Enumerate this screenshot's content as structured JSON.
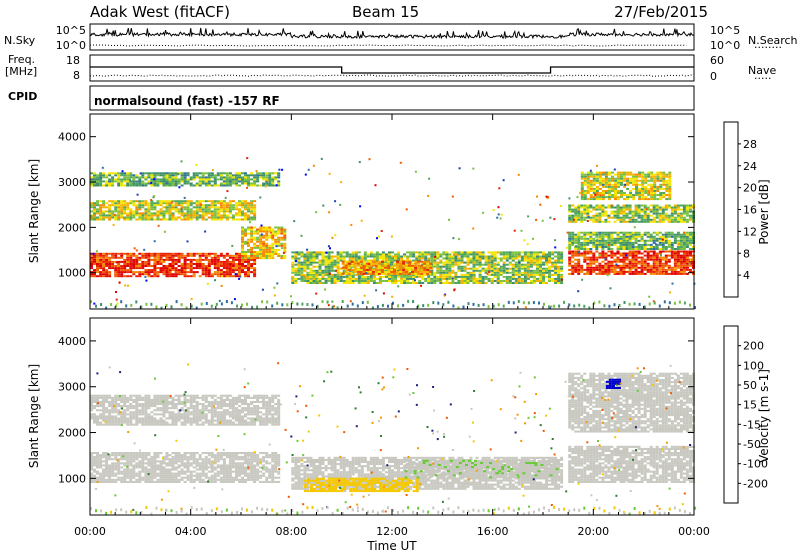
{
  "header": {
    "station": "Adak West (fitACF)",
    "beam": "Beam 15",
    "date": "27/Feb/2015"
  },
  "panels": {
    "nsky": {
      "left_label": "N.Sky",
      "right_label": "N.Search",
      "right_line": "········",
      "left_ticks": [
        "10^5",
        "10^0"
      ],
      "right_ticks": [
        "10^5",
        "10^0"
      ]
    },
    "freq": {
      "left_label_1": "Freq.",
      "left_label_2": "[MHz]",
      "cpid_label": "CPID",
      "right_label": "Nave",
      "right_line": "·····",
      "left_ticks": [
        "18",
        "8"
      ],
      "right_ticks": [
        "60",
        "0"
      ]
    },
    "cpid_text": "normalsound (fast) -157 RF"
  },
  "colors": {
    "power_scale": [
      "#0000ff",
      "#1e3cb4",
      "#2f6ea3",
      "#3e8e6b",
      "#4fa65a",
      "#7cc040",
      "#f2e500",
      "#f5b300",
      "#f68a00",
      "#f05a00",
      "#e82000",
      "#e00000"
    ],
    "velocity_scale": [
      "#e00000",
      "#f05a00",
      "#f59a00",
      "#f5c800",
      "#c8c8c0",
      "#c8c8c0",
      "#66cc33",
      "#2e7d32",
      "#1a237e",
      "#0000cc"
    ]
  },
  "chart_data": [
    {
      "type": "heatmap",
      "title": "Power",
      "ylabel": "Slant Range [km]",
      "xlabel": "Time UT",
      "xlim": [
        "00:00",
        "00:00"
      ],
      "ylim": [
        200,
        4500
      ],
      "x_ticks": [
        "00:00",
        "04:00",
        "08:00",
        "12:00",
        "16:00",
        "20:00",
        "00:00"
      ],
      "y_ticks": [
        1000,
        2000,
        3000,
        4000
      ],
      "colorbar_label": "Power [dB]",
      "colorbar_ticks": [
        4,
        8,
        12,
        16,
        20,
        24,
        28
      ],
      "regions": [
        {
          "t0": 0.0,
          "t1": 6.5,
          "r0": 900,
          "r1": 1400,
          "level": 26
        },
        {
          "t0": 6.0,
          "t1": 7.8,
          "r0": 1300,
          "r1": 2000,
          "level": 18
        },
        {
          "t0": 0.0,
          "t1": 6.5,
          "r0": 2150,
          "r1": 2600,
          "level": 16
        },
        {
          "t0": 0.0,
          "t1": 7.5,
          "r0": 2900,
          "r1": 3200,
          "level": 12
        },
        {
          "t0": 8.0,
          "t1": 18.7,
          "r0": 750,
          "r1": 1450,
          "level": 14
        },
        {
          "t0": 10.0,
          "t1": 13.5,
          "r0": 950,
          "r1": 1250,
          "level": 21
        },
        {
          "t0": 19.0,
          "t1": 24.0,
          "r0": 950,
          "r1": 1450,
          "level": 26
        },
        {
          "t0": 19.0,
          "t1": 24.0,
          "r0": 1500,
          "r1": 1900,
          "level": 12
        },
        {
          "t0": 19.0,
          "t1": 24.0,
          "r0": 2100,
          "r1": 2500,
          "level": 14
        },
        {
          "t0": 19.5,
          "t1": 23.0,
          "r0": 2600,
          "r1": 3200,
          "level": 16
        }
      ]
    },
    {
      "type": "heatmap",
      "title": "Velocity",
      "ylabel": "Slant Range [km]",
      "xlabel": "Time UT",
      "xlim": [
        "00:00",
        "00:00"
      ],
      "ylim": [
        200,
        4500
      ],
      "x_ticks": [
        "00:00",
        "04:00",
        "08:00",
        "12:00",
        "16:00",
        "20:00",
        "00:00"
      ],
      "y_ticks": [
        1000,
        2000,
        3000,
        4000
      ],
      "colorbar_label": "Velocity [m s-1]",
      "colorbar_ticks": [
        -200,
        -100,
        -50,
        -15,
        15,
        50,
        100,
        200
      ],
      "regions": [
        {
          "t0": 0.0,
          "t1": 7.5,
          "r0": 900,
          "r1": 1550,
          "level": 0
        },
        {
          "t0": 0.0,
          "t1": 7.5,
          "r0": 2150,
          "r1": 2800,
          "level": 0
        },
        {
          "t0": 8.0,
          "t1": 18.7,
          "r0": 750,
          "r1": 1450,
          "level": 0
        },
        {
          "t0": 8.5,
          "t1": 13.0,
          "r0": 700,
          "r1": 1000,
          "level": -60
        },
        {
          "t0": 12.5,
          "t1": 18.5,
          "r0": 1000,
          "r1": 1400,
          "level": 40
        },
        {
          "t0": 19.0,
          "t1": 24.0,
          "r0": 900,
          "r1": 1700,
          "level": 0
        },
        {
          "t0": 19.0,
          "t1": 24.0,
          "r0": 2000,
          "r1": 3300,
          "level": 0
        },
        {
          "t0": 20.5,
          "t1": 21.0,
          "r0": 2950,
          "r1": 3150,
          "level": 220
        }
      ]
    }
  ]
}
